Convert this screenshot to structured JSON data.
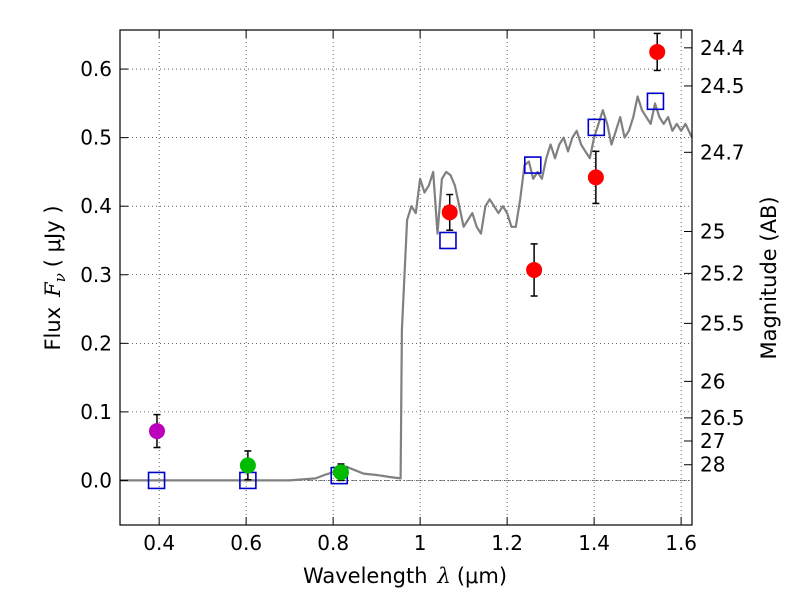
{
  "chart_data": {
    "type": "scatter",
    "title": "",
    "xlabel": {
      "text": "Wavelength",
      "symbol": "λ",
      "unit": "(μm)"
    },
    "ylabel": {
      "text": "Flux",
      "symbol": "F",
      "subscript": "ν",
      "unit": "( μJy )"
    },
    "y2label": "Magnitude (AB)",
    "xlim": [
      0.31,
      1.625
    ],
    "ylim": [
      -0.065,
      0.657
    ],
    "grid": true,
    "x_ticks": [
      0.4,
      0.6,
      0.8,
      1.0,
      1.2,
      1.4,
      1.6
    ],
    "x_tick_labels": [
      "0.4",
      "0.6",
      "0.8",
      "1",
      "1.2",
      "1.4",
      "1.6"
    ],
    "y_ticks": [
      0.0,
      0.1,
      0.2,
      0.3,
      0.4,
      0.5,
      0.6
    ],
    "y_tick_labels": [
      "0.0",
      "0.1",
      "0.2",
      "0.3",
      "0.4",
      "0.5",
      "0.6"
    ],
    "mag_ticks": [
      {
        "label": "24.4",
        "flux": 0.631
      },
      {
        "label": "24.5",
        "flux": 0.5754
      },
      {
        "label": "24.7",
        "flux": 0.4786
      },
      {
        "label": "25",
        "flux": 0.3631
      },
      {
        "label": "25.2",
        "flux": 0.302
      },
      {
        "label": "25.5",
        "flux": 0.2291
      },
      {
        "label": "26",
        "flux": 0.1445
      },
      {
        "label": "26.5",
        "flux": 0.0912
      },
      {
        "label": "27",
        "flux": 0.0575
      },
      {
        "label": "28",
        "flux": 0.0229
      }
    ],
    "series": [
      {
        "name": "model-sed",
        "kind": "line",
        "color": "#808080",
        "x": [
          0.31,
          0.7,
          0.76,
          0.78,
          0.8,
          0.82,
          0.83,
          0.85,
          0.87,
          0.9,
          0.93,
          0.955,
          0.958,
          0.97,
          0.98,
          0.99,
          1.0,
          1.01,
          1.02,
          1.03,
          1.04,
          1.05,
          1.06,
          1.07,
          1.08,
          1.09,
          1.1,
          1.11,
          1.12,
          1.13,
          1.14,
          1.15,
          1.16,
          1.17,
          1.18,
          1.19,
          1.2,
          1.21,
          1.22,
          1.23,
          1.24,
          1.25,
          1.26,
          1.27,
          1.28,
          1.29,
          1.3,
          1.31,
          1.32,
          1.33,
          1.34,
          1.35,
          1.36,
          1.37,
          1.38,
          1.39,
          1.4,
          1.41,
          1.42,
          1.43,
          1.44,
          1.45,
          1.46,
          1.47,
          1.48,
          1.49,
          1.5,
          1.51,
          1.52,
          1.53,
          1.54,
          1.55,
          1.56,
          1.57,
          1.58,
          1.59,
          1.6,
          1.61,
          1.625
        ],
        "y": [
          0.0,
          0.0,
          0.003,
          0.008,
          0.012,
          0.018,
          0.02,
          0.015,
          0.01,
          0.008,
          0.005,
          0.003,
          0.22,
          0.38,
          0.4,
          0.39,
          0.44,
          0.42,
          0.43,
          0.45,
          0.36,
          0.44,
          0.45,
          0.445,
          0.43,
          0.4,
          0.37,
          0.38,
          0.39,
          0.37,
          0.36,
          0.4,
          0.41,
          0.4,
          0.39,
          0.4,
          0.39,
          0.37,
          0.37,
          0.41,
          0.46,
          0.465,
          0.44,
          0.45,
          0.44,
          0.47,
          0.49,
          0.47,
          0.49,
          0.5,
          0.48,
          0.5,
          0.51,
          0.49,
          0.48,
          0.47,
          0.5,
          0.52,
          0.54,
          0.52,
          0.49,
          0.51,
          0.53,
          0.5,
          0.51,
          0.53,
          0.56,
          0.54,
          0.53,
          0.52,
          0.55,
          0.53,
          0.52,
          0.53,
          0.51,
          0.52,
          0.51,
          0.52,
          0.5
        ]
      },
      {
        "name": "model-bandpass",
        "kind": "open-square",
        "color": "#0000cc",
        "x": [
          0.394,
          0.604,
          0.814,
          1.064,
          1.259,
          1.405,
          1.541
        ],
        "y": [
          0.0,
          0.0,
          0.007,
          0.35,
          0.46,
          0.515,
          0.553
        ]
      },
      {
        "name": "observed-ir",
        "kind": "filled-circle",
        "color": "#ff0000",
        "x": [
          1.068,
          1.262,
          1.404,
          1.545
        ],
        "y": [
          0.391,
          0.307,
          0.442,
          0.625
        ],
        "err": [
          0.026,
          0.038,
          0.038,
          0.027
        ]
      },
      {
        "name": "observed-optical-green",
        "kind": "filled-circle",
        "color": "#00bb00",
        "x": [
          0.604,
          0.818
        ],
        "y": [
          0.022,
          0.012
        ],
        "err": [
          0.021,
          0.012
        ]
      },
      {
        "name": "observed-optical-magenta",
        "kind": "filled-circle",
        "color": "#bb00bb",
        "x": [
          0.395
        ],
        "y": [
          0.072
        ],
        "err": [
          0.024
        ]
      }
    ]
  }
}
